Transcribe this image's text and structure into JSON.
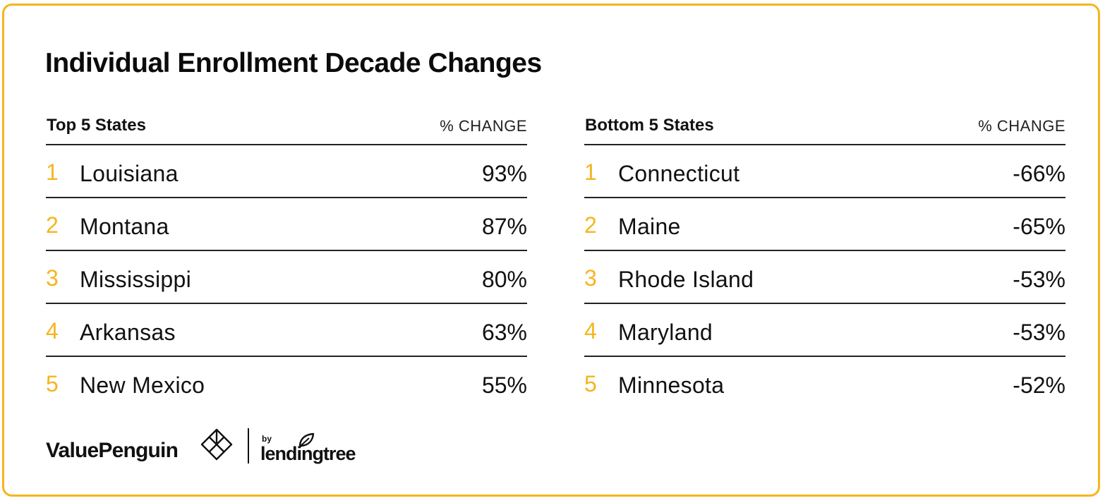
{
  "title": "Individual Enrollment Decade Changes",
  "colors": {
    "accent": "#f5b51e",
    "text": "#111111",
    "rule": "#222222"
  },
  "chart_data": [
    {
      "type": "table",
      "title": "Top 5 States",
      "column_label": "% CHANGE",
      "rows": [
        {
          "rank": "1",
          "state": "Louisiana",
          "change": "93%",
          "value": 93
        },
        {
          "rank": "2",
          "state": "Montana",
          "change": "87%",
          "value": 87
        },
        {
          "rank": "3",
          "state": "Mississippi",
          "change": "80%",
          "value": 80
        },
        {
          "rank": "4",
          "state": "Arkansas",
          "change": "63%",
          "value": 63
        },
        {
          "rank": "5",
          "state": "New Mexico",
          "change": "55%",
          "value": 55
        }
      ]
    },
    {
      "type": "table",
      "title": "Bottom 5 States",
      "column_label": "% CHANGE",
      "rows": [
        {
          "rank": "1",
          "state": "Connecticut",
          "change": "-66%",
          "value": -66
        },
        {
          "rank": "2",
          "state": "Maine",
          "change": "-65%",
          "value": -65
        },
        {
          "rank": "3",
          "state": "Rhode Island",
          "change": "-53%",
          "value": -53
        },
        {
          "rank": "4",
          "state": "Maryland",
          "change": "-53%",
          "value": -53
        },
        {
          "rank": "5",
          "state": "Minnesota",
          "change": "-52%",
          "value": -52
        }
      ]
    }
  ],
  "footer": {
    "brand": "ValuePenguin",
    "brand_icon": "valuepenguin-diamond-icon",
    "by": "by",
    "partner": "lendingtree",
    "partner_icon": "leaf-icon"
  }
}
